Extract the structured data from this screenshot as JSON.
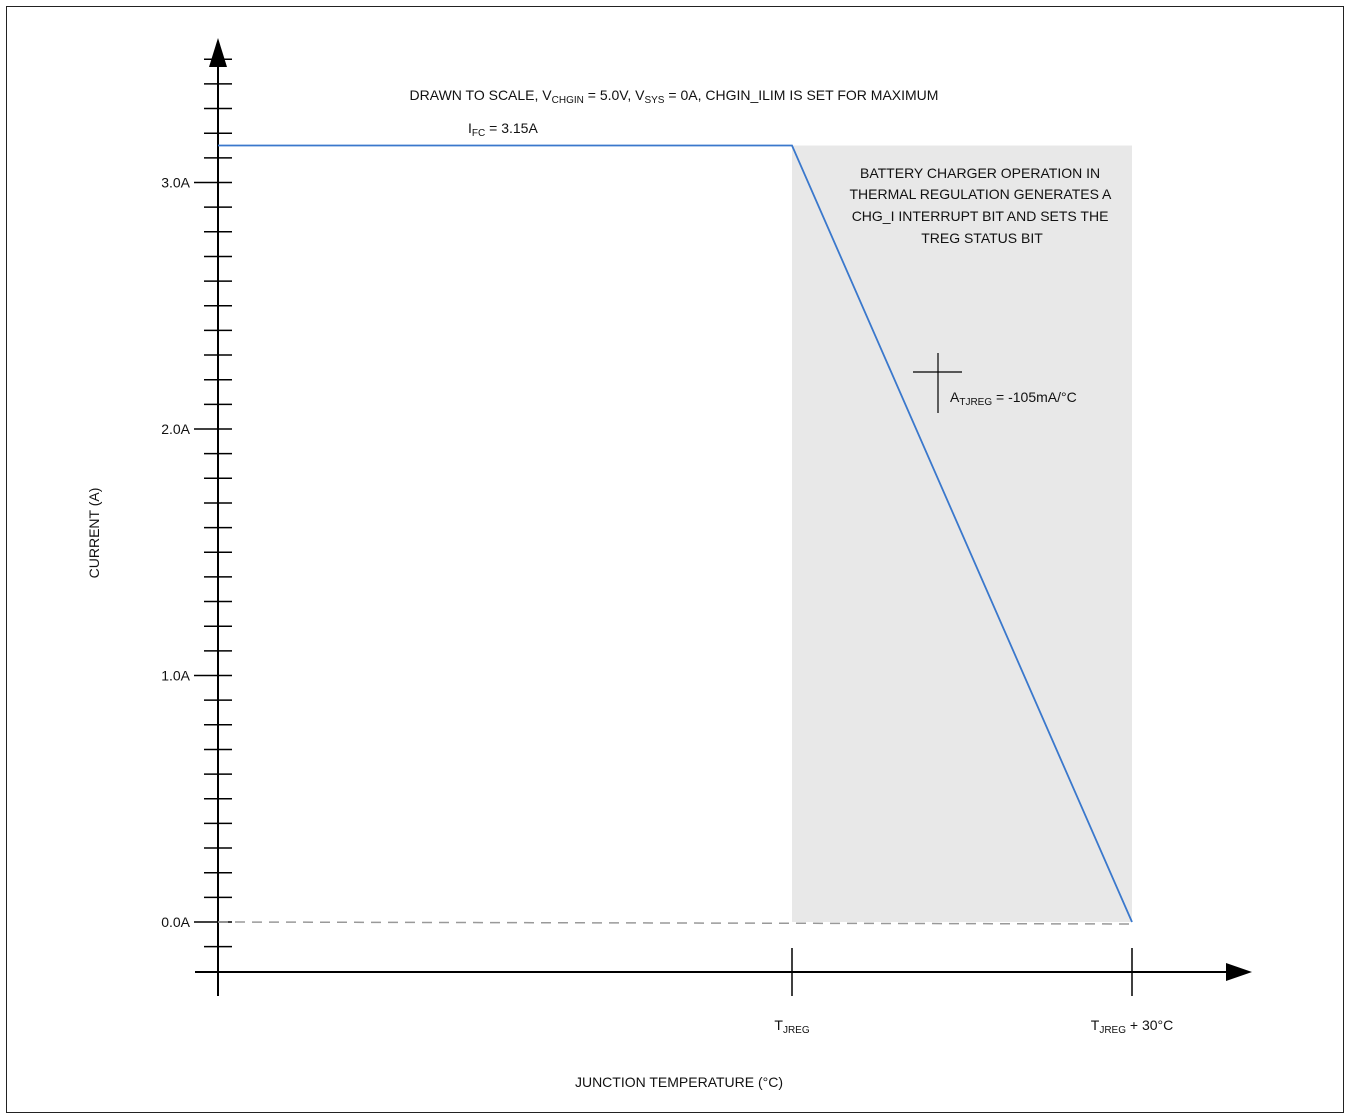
{
  "chart_data": {
    "type": "line",
    "title_parts": [
      "DRAWN TO SCALE, V",
      "CHGIN",
      " = 5.0V, V",
      "SYS",
      " = 0A, CHGIN_ILIM IS SET FOR MAXIMUM"
    ],
    "ylabel": "CURRENT (A)",
    "xlabel": "JUNCTION TEMPERATURE (°C)",
    "ylim": [
      -0.2,
      3.55
    ],
    "y_ticks": [
      {
        "value": 3.0,
        "label": "3.0A"
      },
      {
        "value": 2.0,
        "label": "2.0A"
      },
      {
        "value": 1.0,
        "label": "1.0A"
      },
      {
        "value": 0.0,
        "label": "0.0A"
      }
    ],
    "x_ticks": [
      {
        "value": 0,
        "main": "T",
        "sub": "JREG",
        "tail": ""
      },
      {
        "value": 30,
        "main": "T",
        "sub": "JREG",
        "tail": " + 30°C"
      }
    ],
    "series": [
      {
        "x": [
          -50,
          0,
          30
        ],
        "y": [
          3.15,
          3.15,
          0.0
        ],
        "color": "#3a78cc"
      }
    ],
    "zero_line": {
      "y": 0.0,
      "color": "#999999"
    },
    "region": {
      "x_start": 0,
      "x_end": 30,
      "color": "#e8e8e8"
    },
    "annotations": {
      "ifc": {
        "main": "I",
        "sub": "FC",
        "tail": " = 3.15A"
      },
      "region_text": [
        "BATTERY CHARGER OPERATION IN",
        "THERMAL REGULATION GENERATES A",
        "CHG_I INTERRUPT BIT AND SETS THE",
        "TREG STATUS BIT"
      ],
      "slope": {
        "main": "A",
        "sub": "TJREG",
        "tail": " = -105mA/°C"
      }
    }
  }
}
